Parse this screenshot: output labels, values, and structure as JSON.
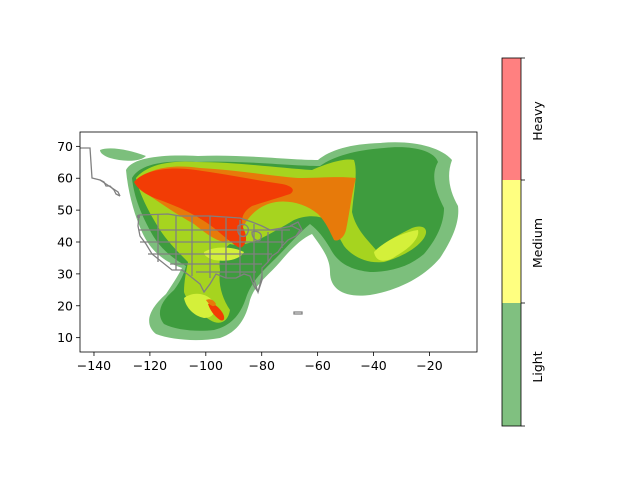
{
  "map": {
    "x_ticks": [
      "−140",
      "−120",
      "−100",
      "−80",
      "−60",
      "−40",
      "−20"
    ],
    "y_ticks": [
      "10",
      "20",
      "30",
      "40",
      "50",
      "60",
      "70"
    ],
    "x_range": [
      -145,
      -3
    ],
    "y_range": [
      5.5,
      74.5
    ],
    "colors": {
      "light": "#7cbf7c",
      "light_dark": "#3e9c3e",
      "medium": "#a6d41f",
      "medium_pale": "#d4f03a",
      "heavy_orange": "#e77a0a",
      "heavy_red": "#f23c05",
      "states": "#808080"
    }
  },
  "colorbar": {
    "levels": [
      {
        "label": "Light",
        "color": "#80c080"
      },
      {
        "label": "Medium",
        "color": "#ffff80"
      },
      {
        "label": "Heavy",
        "color": "#ff8080"
      }
    ]
  }
}
